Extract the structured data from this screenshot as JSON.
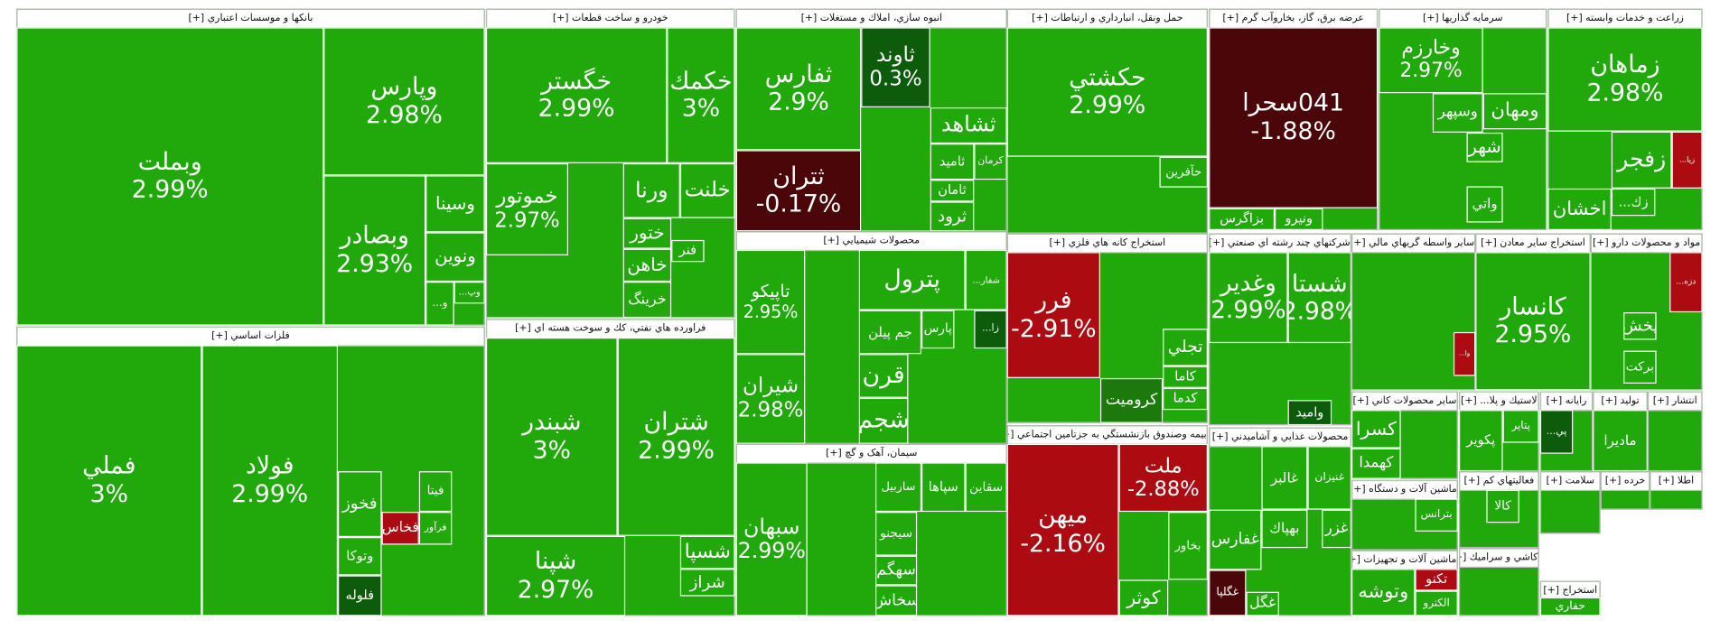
{
  "sectors": [
    {
      "title": "بانكها و موسسات اعتباري [+]",
      "tiles": [
        {
          "label": "وبملت",
          "change": "2.99%",
          "color": "#21a80a"
        },
        {
          "label": "وپارس",
          "change": "2.98%",
          "color": "#21a80a"
        },
        {
          "label": "وبصادر",
          "change": "2.93%",
          "color": "#21a80a"
        },
        {
          "label": "وسينا",
          "color": "#21a80a"
        },
        {
          "label": "ونوين",
          "color": "#21a80a"
        },
        {
          "label": "وپ...",
          "color": "#21a80a"
        },
        {
          "label": "و...",
          "color": "#21a80a"
        }
      ]
    },
    {
      "title": "خودرو و ساخت قطعات [+]",
      "tiles": [
        {
          "label": "خگستر",
          "change": "2.99%",
          "color": "#21a80a"
        },
        {
          "label": "خكمك",
          "change": "3%",
          "color": "#21a80a"
        },
        {
          "label": "خموتور",
          "change": "2.97%",
          "color": "#21a80a"
        },
        {
          "label": "ورنا",
          "color": "#21a80a"
        },
        {
          "label": "خلنت",
          "color": "#21a80a"
        },
        {
          "label": "ختور",
          "color": "#21a80a"
        },
        {
          "label": "خاهن",
          "color": "#21a80a"
        },
        {
          "label": "خرينگ",
          "color": "#21a80a"
        },
        {
          "label": "فنر",
          "color": "#21a80a"
        }
      ]
    },
    {
      "title": "انبوه سازي، املاك و مستغلات [+]",
      "tiles": [
        {
          "label": "ثفارس",
          "change": "2.9%",
          "color": "#21a80a"
        },
        {
          "label": "ثتران",
          "change": "-0.17%",
          "color": "#4a0608"
        },
        {
          "label": "ثاوند",
          "change": "0.3%",
          "color": "#0d5c0b"
        },
        {
          "label": "ثشاهد",
          "color": "#21a80a"
        },
        {
          "label": "ثاميد",
          "color": "#21a80a"
        },
        {
          "label": "كرمان",
          "color": "#21a80a"
        },
        {
          "label": "ثامان",
          "color": "#21a80a"
        },
        {
          "label": "ثرود",
          "color": "#21a80a"
        }
      ]
    },
    {
      "title": "حمل ونقل، انبارداري و ارتباطات [+]",
      "tiles": [
        {
          "label": "حكشتي",
          "change": "2.99%",
          "color": "#21a80a"
        },
        {
          "label": "حآفرين",
          "color": "#21a80a"
        }
      ]
    },
    {
      "title": "عرضه برق، گاز، بخاروآب گرم [+]",
      "tiles": [
        {
          "label": "041سحرا",
          "change": "-1.88%",
          "color": "#4a0608"
        },
        {
          "label": "بزاگرس",
          "color": "#21a80a"
        },
        {
          "label": "ونيرو",
          "color": "#21a80a"
        }
      ]
    },
    {
      "title": "سرمايه گذاريها [+]",
      "tiles": [
        {
          "label": "وخارزم",
          "change": "2.97%",
          "color": "#21a80a"
        },
        {
          "label": "ومهان",
          "color": "#21a80a"
        },
        {
          "label": "وسپهر",
          "color": "#21a80a"
        },
        {
          "label": "شهر",
          "color": "#21a80a"
        },
        {
          "label": "واتي",
          "color": "#21a80a"
        }
      ]
    },
    {
      "title": "زراعت و خدمات وابسته [+]",
      "tiles": [
        {
          "label": "زماهان",
          "change": "2.98%",
          "color": "#21a80a"
        },
        {
          "label": "زفجر",
          "color": "#21a80a"
        },
        {
          "label": "زيا...",
          "color": "#ad0b12"
        },
        {
          "label": "اخشان",
          "color": "#21a80a"
        },
        {
          "label": "زك...",
          "color": "#21a80a"
        }
      ]
    },
    {
      "title": "فلزات اساسي [+]",
      "tiles": [
        {
          "label": "فملي",
          "change": "3%",
          "color": "#21a80a"
        },
        {
          "label": "فولاد",
          "change": "2.99%",
          "color": "#21a80a"
        },
        {
          "label": "فخوز",
          "color": "#21a80a"
        },
        {
          "label": "فخاس",
          "color": "#ad0b12"
        },
        {
          "label": "فيتا",
          "color": "#21a80a"
        },
        {
          "label": "فرآور",
          "color": "#21a80a"
        },
        {
          "label": "وتوكا",
          "color": "#21a80a"
        },
        {
          "label": "فلوله",
          "color": "#0d5c0b"
        }
      ]
    },
    {
      "title": "فراورده هاي نفتي، كك و سوخت هسته اي [+]",
      "tiles": [
        {
          "label": "شبندر",
          "change": "3%",
          "color": "#21a80a"
        },
        {
          "label": "شتران",
          "change": "2.99%",
          "color": "#21a80a"
        },
        {
          "label": "شپنا",
          "change": "2.97%",
          "color": "#21a80a"
        },
        {
          "label": "شسپا",
          "color": "#21a80a"
        },
        {
          "label": "شراز",
          "color": "#21a80a"
        }
      ]
    },
    {
      "title": "محصولات شيميايي [+]",
      "tiles": [
        {
          "label": "تاپيكو",
          "change": "2.95%",
          "color": "#21a80a"
        },
        {
          "label": "شيران",
          "change": "2.98%",
          "color": "#21a80a"
        },
        {
          "label": "پترول",
          "color": "#21a80a"
        },
        {
          "label": "شفار...",
          "color": "#21a80a"
        },
        {
          "label": "جم پيلن",
          "color": "#21a80a"
        },
        {
          "label": "پارس",
          "color": "#21a80a"
        },
        {
          "label": "زا...",
          "color": "#0d5c0b"
        },
        {
          "label": "قرن",
          "color": "#21a80a"
        },
        {
          "label": "شجم",
          "color": "#21a80a"
        }
      ]
    },
    {
      "title": "سيمان، آهک و گچ [+]",
      "tiles": [
        {
          "label": "سبهان",
          "change": "2.99%",
          "color": "#21a80a"
        },
        {
          "label": "ساربيل",
          "color": "#21a80a"
        },
        {
          "label": "سپاها",
          "color": "#21a80a"
        },
        {
          "label": "سقاين",
          "color": "#21a80a"
        },
        {
          "label": "سيجنو",
          "color": "#21a80a"
        },
        {
          "label": "سهگم",
          "color": "#21a80a"
        },
        {
          "label": "سخاش",
          "color": "#21a80a"
        }
      ]
    },
    {
      "title": "استخراج کانه هاي فلزي [+]",
      "tiles": [
        {
          "label": "فرر",
          "change": "-2.91%",
          "color": "#ad0b12"
        },
        {
          "label": "تجلي",
          "color": "#21a80a"
        },
        {
          "label": "كاما",
          "color": "#21a80a"
        },
        {
          "label": "كدما",
          "color": "#21a80a"
        },
        {
          "label": "كروميت",
          "color": "#1b7a0b"
        }
      ]
    },
    {
      "title": "بيمه وصندوق بازنشستگي به جزتامين اجتماعي [+]",
      "tiles": [
        {
          "label": "ميهن",
          "change": "-2.16%",
          "color": "#ad0b12"
        },
        {
          "label": "ملت",
          "change": "-2.88%",
          "color": "#ad0b12"
        },
        {
          "label": "بخاور",
          "color": "#21a80a"
        },
        {
          "label": "كوثر",
          "color": "#21a80a"
        }
      ]
    },
    {
      "title": "شركتهاي چند رشته اي صنعتي [+]",
      "tiles": [
        {
          "label": "وغدير",
          "change": "2.99%",
          "color": "#21a80a"
        },
        {
          "label": "شستا",
          "change": "2.98%",
          "color": "#21a80a"
        },
        {
          "label": "واميد",
          "color": "#0d5c0b"
        }
      ]
    },
    {
      "title": "محصولات غذايي و آشاميدني [+]",
      "tiles": [
        {
          "label": "غالبر",
          "color": "#21a80a"
        },
        {
          "label": "غنيزان",
          "color": "#21a80a"
        },
        {
          "label": "غفارس",
          "color": "#21a80a"
        },
        {
          "label": "بهپاك",
          "color": "#21a80a"
        },
        {
          "label": "غگلپا",
          "color": "#4a0608"
        },
        {
          "label": "غگل",
          "color": "#21a80a"
        },
        {
          "label": "غزر",
          "color": "#21a80a"
        }
      ]
    },
    {
      "title": "ساير واسطه گريهاي مالي [+]",
      "tiles": [
        {
          "label": "وا...",
          "color": "#ad0b12"
        }
      ]
    },
    {
      "title": "استخراج ساير معادن [+]",
      "tiles": [
        {
          "label": "كانسار",
          "change": "2.95%",
          "color": "#21a80a"
        }
      ]
    },
    {
      "title": "مواد و محصولات دارو [+]",
      "tiles": [
        {
          "label": "دزه...",
          "color": "#ad0b12"
        },
        {
          "label": "پخش",
          "color": "#21a80a"
        },
        {
          "label": "بركت",
          "color": "#21a80a"
        }
      ]
    },
    {
      "title": "ساير محصولات كاني [+]",
      "tiles": [
        {
          "label": "كسرا",
          "color": "#21a80a"
        },
        {
          "label": "كهمدا",
          "color": "#21a80a"
        }
      ]
    },
    {
      "title": "لاستيك و پلا... [+]",
      "tiles": [
        {
          "label": "پتاير",
          "color": "#21a80a"
        },
        {
          "label": "پكوير",
          "color": "#21a80a"
        }
      ]
    },
    {
      "title": "رايانه [+]",
      "tiles": [
        {
          "label": "پي...",
          "color": "#0d5c0b"
        }
      ]
    },
    {
      "title": "توليد [+]",
      "tiles": [
        {
          "label": "ماديرا",
          "color": "#21a80a"
        }
      ]
    },
    {
      "title": "انتشار [+]",
      "tiles": []
    },
    {
      "title": "ماشين آلات و دستگاه [+]",
      "tiles": [
        {
          "label": "بترانس",
          "color": "#21a80a"
        }
      ]
    },
    {
      "title": "فعاليتهاي كم [+]",
      "tiles": [
        {
          "label": "كالا",
          "color": "#21a80a"
        }
      ]
    },
    {
      "title": "سلامت [+]",
      "tiles": []
    },
    {
      "title": "خرده [+]",
      "tiles": []
    },
    {
      "title": "اطلا [+]",
      "tiles": []
    },
    {
      "title": "ماشين آلات و تجهيزات [+]",
      "tiles": [
        {
          "label": "تكنو",
          "color": "#ad0b12"
        },
        {
          "label": "وتوشه",
          "color": "#21a80a"
        },
        {
          "label": "الكترو",
          "color": "#21a80a"
        }
      ]
    },
    {
      "title": "كاشي و سراميك [+]",
      "tiles": []
    },
    {
      "title": "استخراج [+]",
      "tiles": [
        {
          "label": "حفاري",
          "color": "#21a80a"
        }
      ]
    }
  ]
}
